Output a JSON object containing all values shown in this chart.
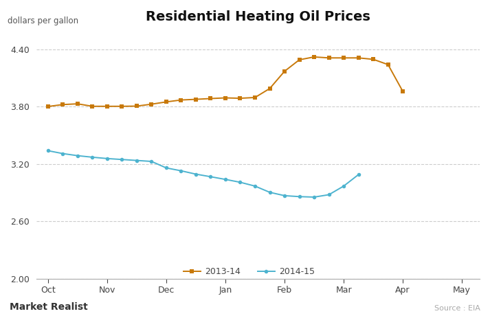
{
  "title": "Residential Heating Oil Prices",
  "ylabel": "dollars per gallon",
  "source_text": "Source : EIA",
  "watermark": "Market Realist",
  "background_color": "#ffffff",
  "ylim": [
    2.0,
    4.6
  ],
  "yticks": [
    2.0,
    2.6,
    3.2,
    3.8,
    4.4
  ],
  "x_labels": [
    "Oct",
    "Nov",
    "Dec",
    "Jan",
    "Feb",
    "Mar",
    "Apr",
    "May"
  ],
  "x_tick_positions": [
    0,
    1.0,
    2.0,
    3.0,
    4.0,
    5.0,
    6.0,
    7.0
  ],
  "xlim": [
    -0.2,
    7.3
  ],
  "series_2013_14": {
    "label": "2013-14",
    "color": "#c8790a",
    "marker": "s",
    "markersize": 4.0,
    "linewidth": 1.4,
    "x": [
      0.0,
      0.25,
      0.5,
      0.75,
      1.0,
      1.25,
      1.5,
      1.75,
      2.0,
      2.25,
      2.5,
      2.75,
      3.0,
      3.25,
      3.5,
      3.75,
      4.0,
      4.25,
      4.5,
      4.75,
      5.0,
      5.25,
      5.5,
      5.75,
      6.0
    ],
    "y": [
      3.802,
      3.822,
      3.83,
      3.804,
      3.804,
      3.804,
      3.806,
      3.826,
      3.85,
      3.87,
      3.877,
      3.885,
      3.892,
      3.888,
      3.896,
      3.99,
      4.17,
      4.29,
      4.32,
      4.31,
      4.31,
      4.31,
      4.295,
      4.24,
      3.96
    ]
  },
  "series_2014_15": {
    "label": "2014-15",
    "color": "#4db3cf",
    "marker": "o",
    "markersize": 4.0,
    "linewidth": 1.4,
    "x": [
      0.0,
      0.25,
      0.5,
      0.75,
      1.0,
      1.25,
      1.5,
      1.75,
      2.0,
      2.25,
      2.5,
      2.75,
      3.0,
      3.25,
      3.5,
      3.75,
      4.0,
      4.25,
      4.5,
      4.75,
      5.0,
      5.25
    ],
    "y": [
      3.34,
      3.31,
      3.288,
      3.272,
      3.258,
      3.248,
      3.238,
      3.228,
      3.16,
      3.13,
      3.095,
      3.068,
      3.04,
      3.01,
      2.97,
      2.905,
      2.87,
      2.86,
      2.855,
      2.88,
      2.97,
      3.09
    ]
  }
}
